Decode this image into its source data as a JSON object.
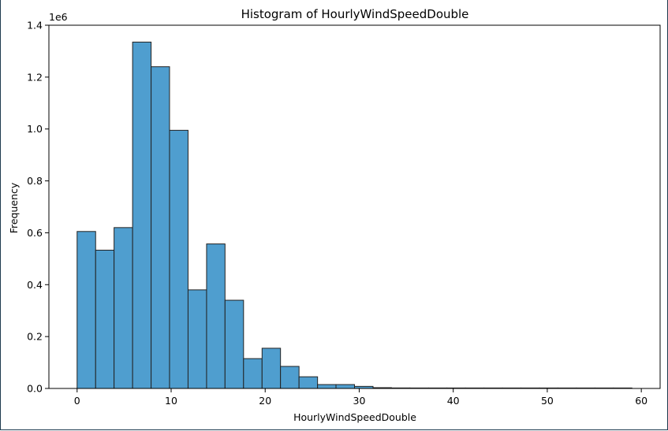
{
  "chart_data": {
    "type": "bar",
    "title": "Histogram of HourlyWindSpeedDouble",
    "xlabel": "HourlyWindSpeedDouble",
    "ylabel": "Frequency",
    "y_offset_label": "1e6",
    "xlim": [
      -3,
      62
    ],
    "ylim": [
      0,
      1.4
    ],
    "x_ticks": [
      0,
      10,
      20,
      30,
      40,
      50,
      60
    ],
    "x_tick_labels": [
      "0",
      "10",
      "20",
      "30",
      "40",
      "50",
      "60"
    ],
    "y_ticks": [
      0.0,
      0.2,
      0.4,
      0.6,
      0.8,
      1.0,
      1.2,
      1.4
    ],
    "y_tick_labels": [
      "0.0",
      "0.2",
      "0.4",
      "0.6",
      "0.8",
      "1.0",
      "1.2",
      "1.4"
    ],
    "grid": false,
    "bar_color": "#4f9ecf",
    "edge_color": "#222222",
    "bins": [
      {
        "x0": 0.0,
        "x1": 1.97,
        "value": 0.605
      },
      {
        "x0": 1.97,
        "x1": 3.93,
        "value": 0.533
      },
      {
        "x0": 3.93,
        "x1": 5.9,
        "value": 0.62
      },
      {
        "x0": 5.9,
        "x1": 7.87,
        "value": 1.335
      },
      {
        "x0": 7.87,
        "x1": 9.83,
        "value": 1.24
      },
      {
        "x0": 9.83,
        "x1": 11.8,
        "value": 0.995
      },
      {
        "x0": 11.8,
        "x1": 13.77,
        "value": 0.38
      },
      {
        "x0": 13.77,
        "x1": 15.73,
        "value": 0.557
      },
      {
        "x0": 15.73,
        "x1": 17.7,
        "value": 0.34
      },
      {
        "x0": 17.7,
        "x1": 19.67,
        "value": 0.115
      },
      {
        "x0": 19.67,
        "x1": 21.63,
        "value": 0.155
      },
      {
        "x0": 21.63,
        "x1": 23.6,
        "value": 0.085
      },
      {
        "x0": 23.6,
        "x1": 25.57,
        "value": 0.045
      },
      {
        "x0": 25.57,
        "x1": 27.53,
        "value": 0.015
      },
      {
        "x0": 27.53,
        "x1": 29.5,
        "value": 0.015
      },
      {
        "x0": 29.5,
        "x1": 31.47,
        "value": 0.008
      },
      {
        "x0": 31.47,
        "x1": 33.43,
        "value": 0.003
      },
      {
        "x0": 33.43,
        "x1": 35.4,
        "value": 0.002
      },
      {
        "x0": 35.4,
        "x1": 37.37,
        "value": 0.001
      },
      {
        "x0": 37.37,
        "x1": 39.33,
        "value": 0.0005
      },
      {
        "x0": 39.33,
        "x1": 41.3,
        "value": 0.0003
      },
      {
        "x0": 41.3,
        "x1": 43.27,
        "value": 0.0002
      },
      {
        "x0": 43.27,
        "x1": 45.23,
        "value": 0.0001
      },
      {
        "x0": 45.23,
        "x1": 47.2,
        "value": 0.0001
      },
      {
        "x0": 47.2,
        "x1": 49.17,
        "value": 0.0001
      },
      {
        "x0": 49.17,
        "x1": 51.13,
        "value": 0.0001
      },
      {
        "x0": 51.13,
        "x1": 53.1,
        "value": 0.0
      },
      {
        "x0": 53.1,
        "x1": 55.07,
        "value": 0.0
      },
      {
        "x0": 55.07,
        "x1": 57.03,
        "value": 0.0
      },
      {
        "x0": 57.03,
        "x1": 59.0,
        "value": 0.0001
      }
    ]
  }
}
